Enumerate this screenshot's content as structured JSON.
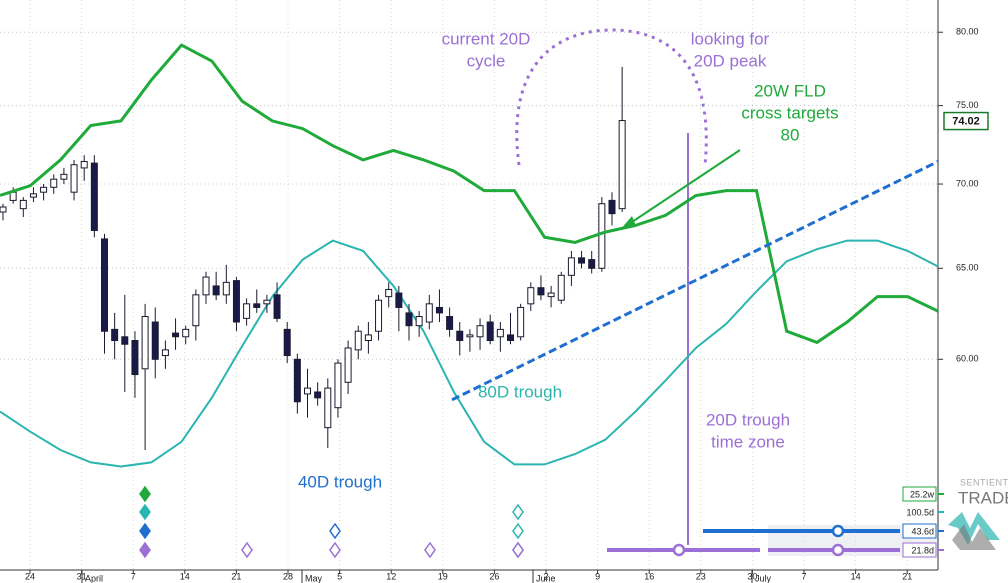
{
  "chart_data": {
    "type": "candlestick",
    "log_scale": true,
    "grid": true,
    "ylim": [
      49.85,
      82.3
    ],
    "yticks": [
      {
        "value": 80,
        "label": "80.00"
      },
      {
        "value": 75,
        "label": "75.00"
      },
      {
        "value": 70,
        "label": "70.00"
      },
      {
        "value": 65,
        "label": "65.00"
      },
      {
        "value": 60,
        "label": "60.00"
      }
    ],
    "last_price": {
      "value": 74.02,
      "label": "74.02"
    },
    "xticks": [
      "24",
      "31",
      "7",
      "14",
      "21",
      "28",
      "5",
      "12",
      "19",
      "26",
      "2",
      "9",
      "16",
      "23",
      "30",
      "7",
      "14",
      "21"
    ],
    "months": [
      "April",
      "May",
      "June",
      "July"
    ],
    "candles": {
      "open": [
        68.3,
        69.0,
        68.5,
        69.2,
        69.5,
        69.8,
        70.3,
        69.5,
        71.0,
        71.3,
        66.7,
        61.6,
        61.2,
        61.0,
        59.5,
        62.0,
        60.2,
        61.4,
        61.2,
        61.8,
        63.5,
        64.0,
        63.5,
        64.3,
        62.2,
        63.0,
        63.0,
        63.5,
        61.6,
        60.0,
        58.2,
        58.3,
        56.5,
        57.5,
        58.8,
        60.5,
        61.0,
        61.5,
        63.4,
        63.6,
        62.5,
        61.8,
        62.0,
        62.8,
        62.3,
        61.5,
        61.2,
        61.2,
        62.0,
        61.2,
        61.3,
        61.2,
        63.0,
        63.9,
        63.4,
        63.2,
        64.6,
        65.6,
        65.5,
        65.0,
        69.0,
        68.5
      ],
      "high": [
        68.8,
        69.8,
        69.2,
        69.8,
        70.0,
        70.6,
        71.0,
        71.5,
        71.8,
        71.8,
        67.0,
        62.5,
        63.5,
        61.5,
        63.0,
        62.8,
        61.0,
        62.2,
        61.8,
        63.8,
        64.8,
        64.8,
        65.2,
        64.5,
        63.3,
        63.8,
        63.5,
        64.2,
        62.0,
        60.3,
        59.5,
        58.8,
        59.0,
        60.0,
        61.0,
        61.8,
        62.0,
        63.5,
        64.2,
        64.0,
        63.0,
        62.6,
        63.5,
        63.8,
        62.8,
        62.0,
        61.6,
        62.2,
        62.4,
        62.0,
        62.5,
        63.0,
        64.2,
        64.6,
        64.0,
        64.8,
        66.0,
        66.0,
        66.0,
        69.2,
        69.5,
        77.6
      ],
      "low": [
        67.8,
        68.8,
        68.0,
        68.9,
        69.0,
        69.4,
        70.0,
        69.0,
        70.2,
        66.8,
        60.3,
        60.0,
        58.3,
        58.0,
        55.4,
        59.0,
        59.5,
        60.5,
        60.8,
        61.0,
        63.0,
        63.2,
        63.0,
        61.5,
        61.8,
        62.5,
        62.5,
        62.0,
        59.8,
        57.2,
        57.0,
        57.6,
        55.5,
        57.0,
        58.2,
        60.0,
        60.3,
        61.0,
        62.8,
        61.5,
        61.0,
        61.2,
        61.6,
        62.0,
        61.2,
        60.2,
        60.4,
        60.5,
        60.8,
        60.4,
        60.8,
        61.0,
        62.6,
        63.2,
        62.8,
        63.0,
        64.0,
        65.0,
        64.7,
        64.8,
        67.5,
        68.3
      ],
      "close": [
        68.6,
        69.5,
        69.0,
        69.4,
        69.8,
        70.3,
        70.6,
        71.2,
        71.4,
        67.2,
        61.5,
        61.0,
        60.8,
        59.2,
        62.3,
        60.0,
        60.5,
        61.2,
        61.6,
        63.5,
        64.5,
        63.5,
        64.2,
        62.0,
        63.0,
        62.8,
        63.2,
        62.2,
        60.2,
        57.8,
        58.5,
        58.0,
        58.5,
        59.8,
        60.6,
        61.5,
        61.3,
        63.2,
        63.8,
        62.8,
        61.8,
        62.3,
        63.0,
        62.5,
        61.6,
        61.0,
        61.3,
        61.8,
        61.0,
        61.6,
        61.0,
        62.8,
        63.9,
        63.5,
        63.6,
        64.6,
        65.6,
        65.3,
        65.0,
        68.8,
        68.2,
        74.02
      ]
    },
    "series": [
      {
        "name": "20W FLD",
        "color": "#1faa3a",
        "values": [
          69.3,
          69.9,
          71.5,
          73.7,
          74.0,
          76.7,
          79.1,
          78.0,
          75.3,
          74.0,
          73.5,
          72.4,
          71.5,
          72.1,
          71.5,
          70.8,
          69.6,
          69.6,
          66.8,
          66.5,
          67.1,
          67.5,
          68.1,
          69.3,
          69.6,
          69.6,
          61.5,
          60.9,
          62.0,
          63.4,
          63.4,
          62.6
        ]
      },
      {
        "name": "cycle",
        "color": "#2ab5b0",
        "values": [
          57.3,
          56.3,
          55.4,
          54.8,
          54.6,
          54.8,
          55.8,
          58.0,
          60.7,
          63.4,
          65.5,
          66.6,
          66.0,
          64.0,
          61.5,
          58.3,
          55.8,
          54.7,
          54.7,
          55.2,
          55.9,
          57.3,
          58.9,
          60.6,
          61.9,
          63.7,
          65.4,
          66.1,
          66.6,
          66.6,
          66.0,
          65.1
        ]
      },
      {
        "name": "trend",
        "color": "#1f6fd1",
        "values": [
          57.9,
          71.4
        ]
      }
    ],
    "annotations": [
      {
        "lines": [
          "current 20D",
          "cycle"
        ],
        "color": "#9b6fd6"
      },
      {
        "lines": [
          "looking for",
          "20D peak"
        ],
        "color": "#9b6fd6"
      },
      {
        "lines": [
          "20W FLD",
          "cross targets",
          "80"
        ],
        "color": "#1faa3a"
      },
      {
        "lines": [
          "80D trough"
        ],
        "color": "#2ab5b0"
      },
      {
        "lines": [
          "40D trough"
        ],
        "color": "#1f6fd1"
      },
      {
        "lines": [
          "20D trough",
          "time zone"
        ],
        "color": "#9b6fd6"
      }
    ],
    "cycle_labels": [
      {
        "text": "25.2w",
        "color": "#1faa3a"
      },
      {
        "text": "100.5d",
        "color": "#2ab5b0"
      },
      {
        "text": "43.6d",
        "color": "#1f6fd1"
      },
      {
        "text": "21.8d",
        "color": "#9b6fd6"
      }
    ],
    "logo": [
      "SENTIENT",
      "TRADER"
    ]
  }
}
